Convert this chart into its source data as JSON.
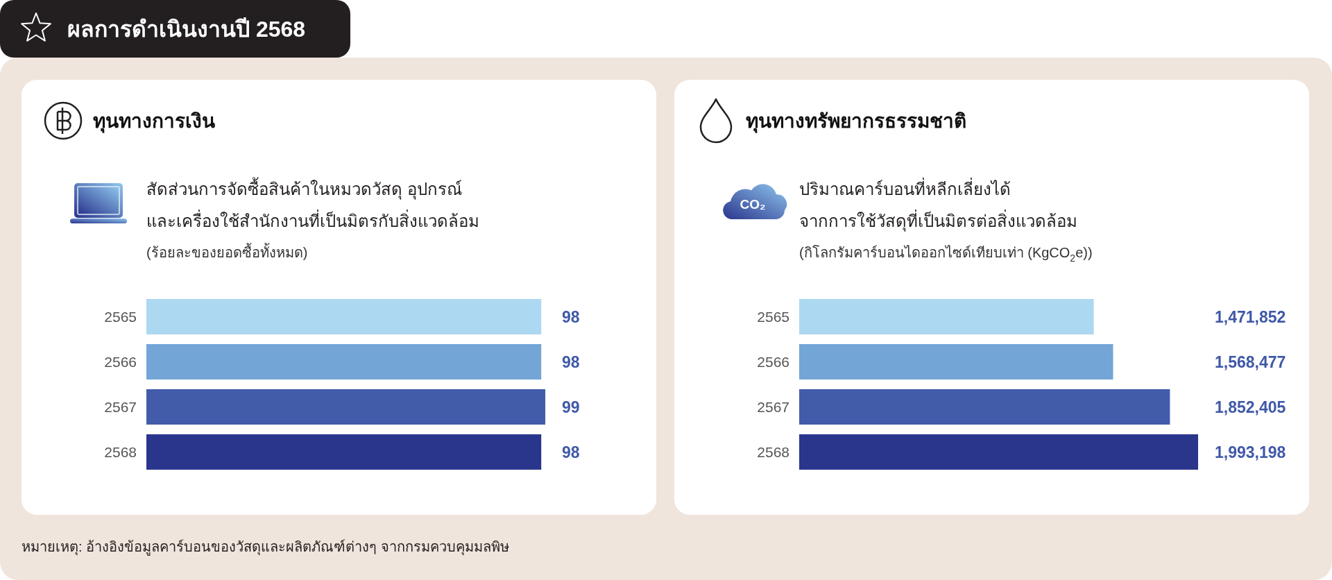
{
  "chart_data": [
    {
      "type": "other",
      "title": "ผลการดำเนินงานปี 2568",
      "annotations": [
        "หมายเหตุ: อ้างอิงข้อมูลคาร์บอนของวัสดุและผลิตภัณฑ์ต่างๆ จากกรมควบคุมมลพิษ"
      ]
    },
    {
      "type": "bar",
      "orientation": "horizontal",
      "title": "ทุนทางการเงิน",
      "subtitle": "สัดส่วนการจัดซื้อสินค้าในหมวดวัสดุ อุปกรณ์ และเครื่องใช้สำนักงานที่เป็นมิตรกับสิ่งแวดล้อม",
      "xlabel": "(ร้อยละของยอดซื้อทั้งหมด)",
      "categories": [
        "2565",
        "2566",
        "2567",
        "2568"
      ],
      "values": [
        98,
        98,
        99,
        98
      ],
      "colors": [
        "#acd8f2",
        "#73a5d6",
        "#425caa",
        "#2a358c"
      ],
      "data_labels": true
    },
    {
      "type": "bar",
      "orientation": "horizontal",
      "title": "ทุนทางทรัพยากรธรรมชาติ",
      "subtitle": "ปริมาณคาร์บอนที่หลีกเลี่ยงได้ จากการใช้วัสดุที่เป็นมิตรต่อสิ่งแวดล้อม",
      "xlabel": "(กิโลกรัมคาร์บอนไดออกไซด์เทียบเท่า (KgCO$_{2}$e))",
      "categories": [
        "2565",
        "2566",
        "2567",
        "2568"
      ],
      "values": [
        1471852,
        1568477,
        1852405,
        1993198
      ],
      "value_labels": [
        "1,471,852",
        "1,568,477",
        "1,852,405",
        "1,993,198"
      ],
      "colors": [
        "#acd8f2",
        "#73a5d6",
        "#425caa",
        "#2a358c"
      ],
      "annotations": [
        "CO₂"
      ]
    }
  ]
}
